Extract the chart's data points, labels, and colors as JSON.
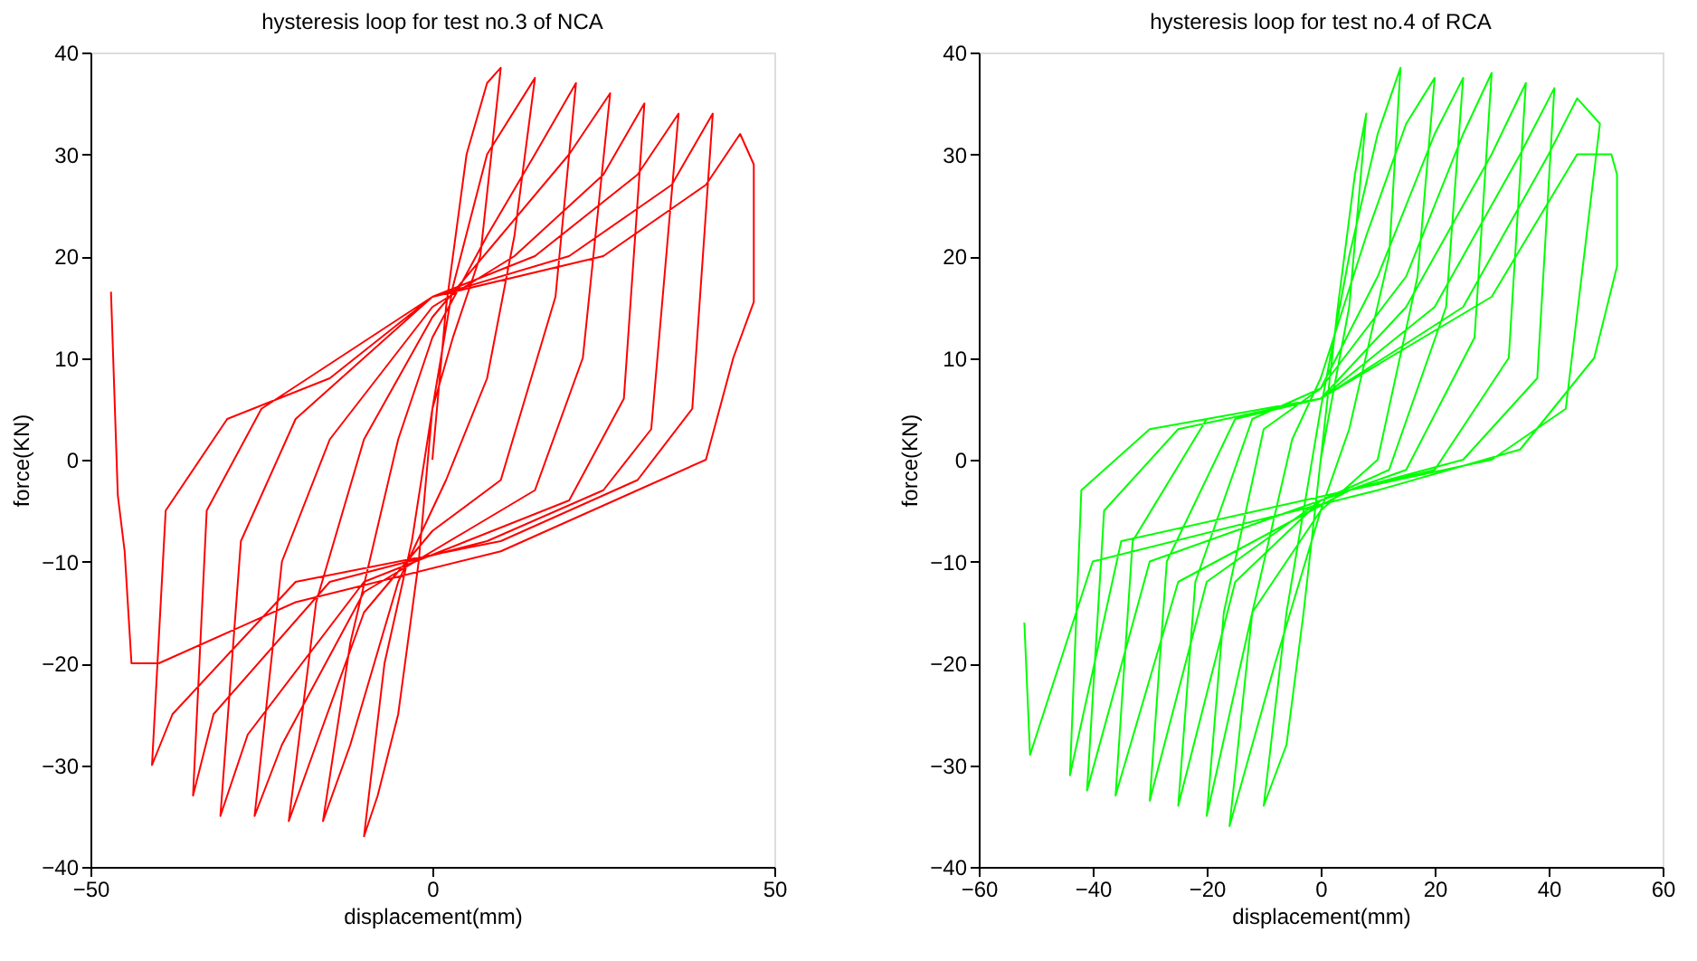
{
  "chart_data": [
    {
      "type": "line",
      "title": "hysteresis loop for test no.3 of NCA",
      "xlabel": "displacement(mm)",
      "ylabel": "force(KN)",
      "xlim": [
        -50,
        50
      ],
      "ylim": [
        -40,
        40
      ],
      "xticks": [
        -50,
        0,
        50
      ],
      "yticks": [
        -40,
        -30,
        -20,
        -10,
        0,
        10,
        20,
        30,
        40
      ],
      "series": [
        {
          "color": "#ff0000",
          "x": [
            0,
            2,
            5,
            8,
            10,
            7,
            3,
            0,
            -2,
            -5,
            -8,
            -10,
            -7,
            -3,
            0,
            3,
            8,
            15,
            12,
            8,
            2,
            -5,
            -12,
            -16,
            -12,
            -5,
            0,
            8,
            15,
            21,
            18,
            10,
            0,
            -10,
            -17,
            -21,
            -17,
            -10,
            0,
            10,
            20,
            26,
            22,
            15,
            5,
            -10,
            -22,
            -26,
            -22,
            -15,
            0,
            12,
            25,
            31,
            28,
            20,
            5,
            -10,
            -27,
            -31,
            -28,
            -20,
            0,
            15,
            30,
            36,
            32,
            25,
            8,
            -15,
            -32,
            -35,
            -33,
            -25,
            0,
            20,
            35,
            41,
            38,
            30,
            10,
            -20,
            -38,
            -41,
            -39,
            -30,
            -15,
            0,
            25,
            40,
            45,
            47,
            47,
            44,
            40,
            30,
            10,
            -20,
            -40,
            -44,
            -45,
            -46,
            -47
          ],
          "values": [
            0,
            15,
            30,
            37,
            38.5,
            20,
            12,
            5,
            -10,
            -25,
            -33,
            -37,
            -20,
            -8,
            5,
            17,
            30,
            37.5,
            22,
            8,
            -2,
            -12,
            -28,
            -35.5,
            -18,
            2,
            12,
            22,
            30,
            37,
            16,
            -2,
            -7,
            -15,
            -28,
            -35.5,
            -14,
            2,
            14,
            22,
            30,
            36,
            10,
            -3,
            -7,
            -13,
            -28,
            -35,
            -10,
            2,
            15,
            20,
            28,
            35,
            6,
            -4,
            -8,
            -12,
            -27,
            -35,
            -8,
            4,
            16,
            20,
            28,
            34,
            3,
            -3,
            -8,
            -12,
            -25,
            -33,
            -5,
            5,
            16,
            20,
            27,
            34,
            5,
            -2,
            -8,
            -12,
            -25,
            -30,
            -5,
            4,
            8,
            16,
            20,
            27,
            32,
            29,
            15.5,
            10,
            0,
            -3,
            -9,
            -14,
            -20,
            -20,
            -9,
            -3.5,
            16.5
          ]
        }
      ]
    },
    {
      "type": "line",
      "title": "hysteresis loop for test no.4 of RCA",
      "xlabel": "displacement(mm)",
      "ylabel": "force(KN)",
      "xlim": [
        -60,
        60
      ],
      "ylim": [
        -40,
        40
      ],
      "xticks": [
        -60,
        -40,
        -20,
        0,
        20,
        40,
        60
      ],
      "yticks": [
        -40,
        -30,
        -20,
        -10,
        0,
        10,
        20,
        30,
        40
      ],
      "series": [
        {
          "color": "#00ff00",
          "x": [
            0,
            3,
            6,
            8,
            5,
            0,
            -3,
            -6,
            -10,
            -6,
            0,
            5,
            10,
            14,
            12,
            5,
            0,
            -8,
            -16,
            -12,
            -5,
            0,
            8,
            15,
            20,
            17,
            10,
            0,
            -12,
            -20,
            -17,
            -10,
            0,
            10,
            20,
            25,
            22,
            12,
            0,
            -15,
            -25,
            -22,
            -12,
            0,
            15,
            25,
            30,
            27,
            15,
            0,
            -20,
            -30,
            -27,
            -15,
            0,
            15,
            30,
            36,
            33,
            20,
            5,
            -25,
            -36,
            -33,
            -20,
            0,
            20,
            35,
            41,
            38,
            25,
            5,
            -30,
            -41,
            -38,
            -25,
            0,
            25,
            40,
            45,
            49,
            43,
            30,
            5,
            -35,
            -44,
            -42,
            -30,
            0,
            30,
            45,
            51,
            52,
            52,
            48,
            35,
            10,
            -40,
            -51,
            -52
          ],
          "values": [
            0,
            15,
            28,
            34,
            15,
            0,
            -15,
            -28,
            -34,
            -15,
            5,
            20,
            32,
            38.5,
            20,
            3,
            -5,
            -20,
            -36,
            -15,
            2,
            8,
            22,
            33,
            37.5,
            18,
            0,
            -5,
            -15,
            -35,
            -15,
            3,
            7,
            18,
            32,
            37.5,
            15,
            -1,
            -4,
            -12,
            -34,
            -12,
            4,
            7,
            18,
            32,
            38,
            12,
            -1,
            -4,
            -12,
            -33.5,
            -10,
            4,
            6,
            15,
            30,
            37,
            10,
            -1,
            -3,
            -12,
            -33,
            -8,
            4,
            6,
            15,
            30,
            36.5,
            8,
            0,
            -3,
            -10,
            -32.5,
            -5,
            3,
            6,
            15,
            30,
            35.5,
            33,
            5,
            0,
            -3,
            -8,
            -31,
            -3,
            3,
            6,
            16,
            30,
            30,
            28,
            19,
            10,
            1,
            -3,
            -10,
            -29,
            -16
          ]
        }
      ]
    }
  ]
}
